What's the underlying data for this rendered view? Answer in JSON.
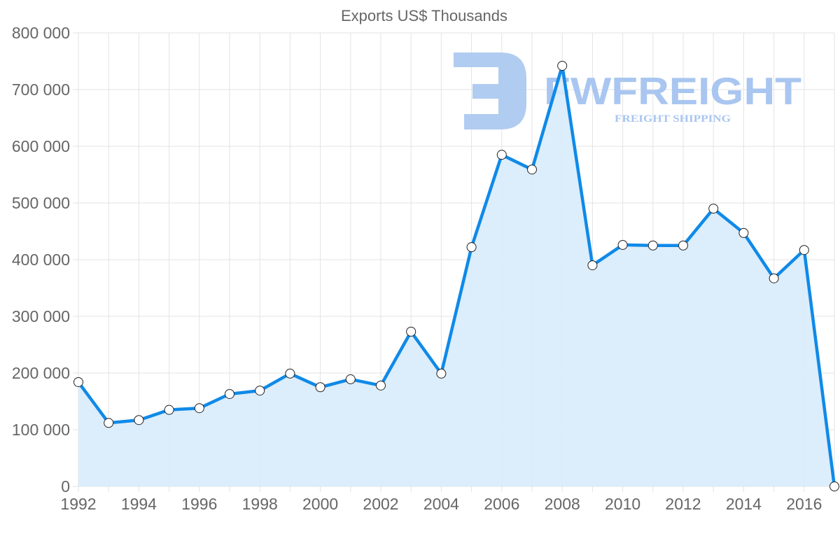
{
  "chart_data": {
    "type": "area",
    "title": "Exports US$ Thousands",
    "xlabel": "",
    "ylabel": "",
    "x": [
      1992,
      1993,
      1994,
      1995,
      1996,
      1997,
      1998,
      1999,
      2000,
      2001,
      2002,
      2003,
      2004,
      2005,
      2006,
      2007,
      2008,
      2009,
      2010,
      2011,
      2012,
      2013,
      2014,
      2015,
      2016,
      2017
    ],
    "series": [
      {
        "name": "Exports US$ Thousands",
        "color": "#0f8ae8",
        "fill": "#d8ebfb",
        "values": [
          184000,
          112000,
          117000,
          135000,
          138000,
          163000,
          169000,
          199000,
          175000,
          189000,
          178000,
          273000,
          199000,
          422000,
          585000,
          559000,
          742000,
          390000,
          426000,
          425000,
          425000,
          490000,
          447000,
          367000,
          417000,
          0
        ]
      }
    ],
    "x_tick_labels": [
      "1992",
      "1994",
      "1996",
      "1998",
      "2000",
      "2002",
      "2004",
      "2006",
      "2008",
      "2010",
      "2012",
      "2014",
      "2016"
    ],
    "y_tick_labels": [
      "0",
      "100 000",
      "200 000",
      "300 000",
      "400 000",
      "500 000",
      "600 000",
      "700 000",
      "800 000"
    ],
    "ylim": [
      0,
      800000
    ],
    "xlim": [
      1992,
      2017
    ],
    "grid": true,
    "legend": "none"
  },
  "watermark": {
    "brand": "FWFREIGHT",
    "tagline": "FREIGHT SHIPPING",
    "color": "#a9c6f0"
  }
}
